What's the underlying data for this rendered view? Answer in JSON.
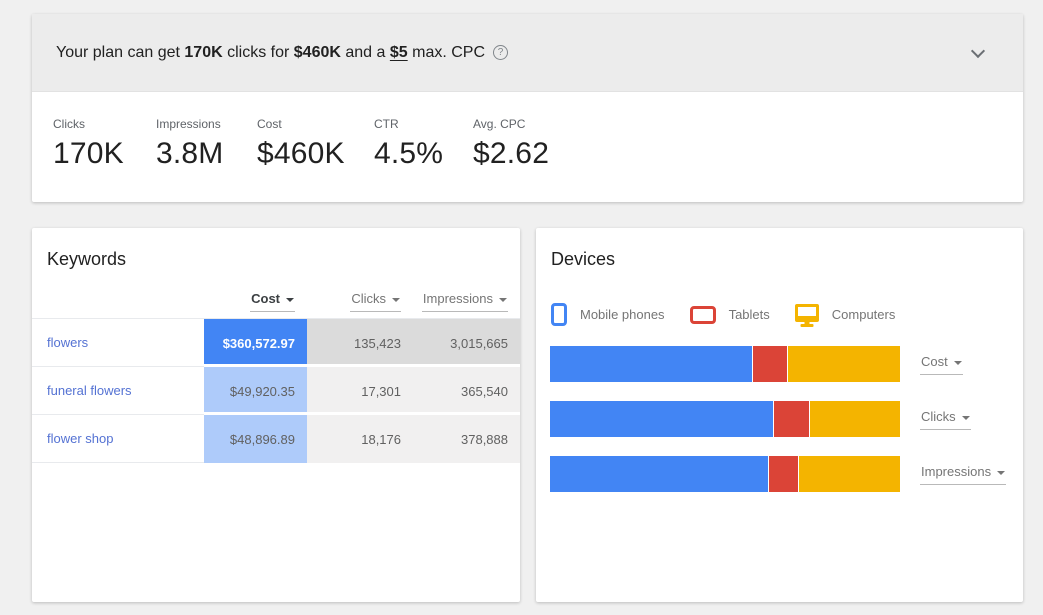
{
  "banner": {
    "part1": "Your plan can get ",
    "clicks_value": "170K",
    "part2": " clicks for ",
    "cost_value": "$460K",
    "part3": " and a ",
    "max_cpc_value": "$5",
    "part4": " max. CPC",
    "help_icon_glyph": "?"
  },
  "metrics": {
    "items": [
      {
        "label": "Clicks",
        "value": "170K"
      },
      {
        "label": "Impressions",
        "value": "3.8M"
      },
      {
        "label": "Cost",
        "value": "$460K"
      },
      {
        "label": "CTR",
        "value": "4.5%"
      },
      {
        "label": "Avg. CPC",
        "value": "$2.62"
      }
    ]
  },
  "keywords_panel": {
    "title": "Keywords",
    "sort_columns": [
      "Cost",
      "Clicks",
      "Impressions"
    ],
    "active_sort": "Cost",
    "rows": [
      {
        "keyword": "flowers",
        "cost": "$360,572.97",
        "clicks": "135,423",
        "impressions": "3,015,665"
      },
      {
        "keyword": "funeral flowers",
        "cost": "$49,920.35",
        "clicks": "17,301",
        "impressions": "365,540"
      },
      {
        "keyword": "flower shop",
        "cost": "$48,896.89",
        "clicks": "18,176",
        "impressions": "378,888"
      }
    ]
  },
  "devices_panel": {
    "title": "Devices",
    "legend": [
      {
        "label": "Mobile phones",
        "color": "#4285f4",
        "icon": "phone-icon"
      },
      {
        "label": "Tablets",
        "color": "#db4437",
        "icon": "tablet-icon"
      },
      {
        "label": "Computers",
        "color": "#f4b400",
        "icon": "monitor-icon"
      }
    ],
    "bar_dropdowns": [
      "Cost",
      "Clicks",
      "Impressions"
    ]
  },
  "chart_data": {
    "type": "bar",
    "stacked": true,
    "orientation": "horizontal",
    "categories": [
      "Cost",
      "Clicks",
      "Impressions"
    ],
    "series": [
      {
        "name": "Mobile phones",
        "color": "#4285f4",
        "values": [
          57.7,
          63.7,
          62.3
        ]
      },
      {
        "name": "Tablets",
        "color": "#db4437",
        "values": [
          10.0,
          10.3,
          8.6
        ]
      },
      {
        "name": "Computers",
        "color": "#f4b400",
        "values": [
          32.3,
          26.0,
          29.1
        ]
      }
    ],
    "value_unit": "percent of bar width",
    "legend_position": "top",
    "grid": false
  },
  "colors": {
    "accent_blue": "#4285f4",
    "accent_red": "#db4437",
    "accent_yellow": "#f4b400",
    "cost_cell_selected": "#4285f4",
    "cost_cell_light": "#aecbfa",
    "value_cell_dark": "#dbdbdb",
    "value_cell_light": "#f1f0f0",
    "link_blue": "#5472d3",
    "banner_bg": "#ececec",
    "page_bg": "#f0f0f0"
  }
}
